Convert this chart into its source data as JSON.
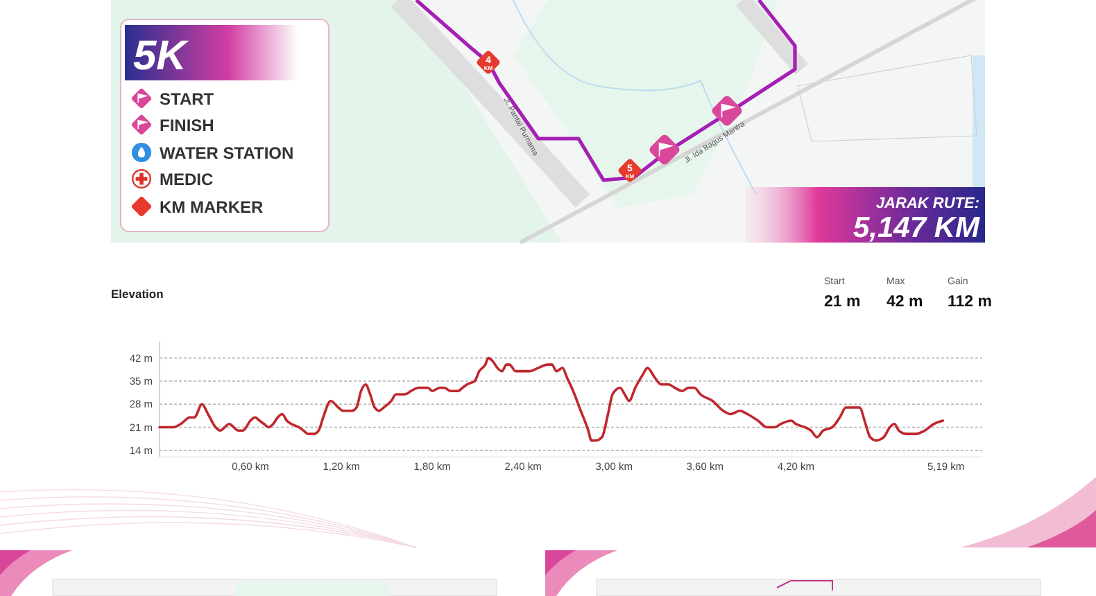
{
  "chart_data": [
    {
      "type": "other",
      "title": "5K",
      "annotations": [
        "START",
        "FINISH",
        "WATER STATION",
        "MEDIC",
        "KM MARKER",
        "JARAK RUTE:",
        "5,147 KM",
        "4 KM",
        "5 KM",
        "Jl. Pantai Purnama",
        "Jl. Ida Bagus Mantra"
      ]
    },
    {
      "type": "line",
      "title": "Elevation",
      "annotations": [
        "Start",
        "21 m",
        "Max",
        "42 m",
        "Gain",
        "112 m"
      ],
      "x": [
        0,
        0.03,
        0.09,
        0.14,
        0.2,
        0.23,
        0.28,
        0.32,
        0.37,
        0.4,
        0.43,
        0.46,
        0.49,
        0.52,
        0.55,
        0.6,
        0.63,
        0.66,
        0.69,
        0.72,
        0.75,
        0.78,
        0.81,
        0.84,
        0.87,
        0.92,
        0.95,
        0.98,
        1.02,
        1.05,
        1.08,
        1.13,
        1.18,
        1.21,
        1.25,
        1.27,
        1.3,
        1.33,
        1.36,
        1.39,
        1.42,
        1.45,
        1.48,
        1.53,
        1.56,
        1.62,
        1.66,
        1.71,
        1.77,
        1.8,
        1.85,
        1.88,
        1.92,
        1.97,
        2,
        2.03,
        2.08,
        2.11,
        2.15,
        2.17,
        2.2,
        2.23,
        2.26,
        2.29,
        2.31,
        2.35,
        2.4,
        2.44,
        2.5,
        2.56,
        2.59,
        2.62,
        2.66,
        2.69,
        2.73,
        2.78,
        2.83,
        2.85,
        2.88,
        2.92,
        2.96,
        2.99,
        3.04,
        3.07,
        3.1,
        3.14,
        3.19,
        3.22,
        3.27,
        3.31,
        3.36,
        3.4,
        3.45,
        3.49,
        3.53,
        3.57,
        3.65,
        3.72,
        3.77,
        3.83,
        3.88,
        3.95,
        4.01,
        4.06,
        4.1,
        4.17,
        4.2,
        4.26,
        4.3,
        4.34,
        4.38,
        4.44,
        4.49,
        4.53,
        4.58,
        4.62,
        4.66,
        4.69,
        4.73,
        4.78,
        4.82,
        4.85,
        4.88,
        4.93,
        4.99,
        5.05,
        5.11,
        5.17
      ],
      "values": [
        21,
        21,
        21,
        22,
        24,
        24,
        28,
        25,
        21,
        20,
        21,
        22,
        21,
        20,
        20,
        23,
        24,
        23,
        22,
        21,
        22,
        24,
        25,
        23,
        22,
        21,
        20,
        19,
        19,
        20,
        24,
        29,
        27,
        26,
        26,
        26,
        27,
        32,
        34,
        31,
        27,
        26,
        27,
        29,
        31,
        31,
        32,
        33,
        33,
        32,
        33,
        33,
        32,
        32,
        33,
        34,
        35,
        38,
        40,
        42,
        41,
        39,
        38,
        40,
        40,
        38,
        38,
        38,
        39,
        40,
        40,
        38,
        39,
        36,
        32,
        26,
        20,
        17,
        17,
        18,
        25,
        31,
        33,
        31,
        29,
        33,
        37,
        39,
        36,
        34,
        34,
        33,
        32,
        33,
        33,
        31,
        29,
        26,
        25,
        26,
        25,
        23,
        21,
        21,
        22,
        23,
        22,
        21,
        20,
        18,
        20,
        21,
        24,
        27,
        27,
        27,
        22,
        18,
        17,
        18,
        21,
        22,
        20,
        19,
        19,
        20,
        22,
        23
      ],
      "color": "#c0272d",
      "xlim": [
        0,
        5.43
      ],
      "ylim": [
        12,
        47
      ],
      "xticks": [
        {
          "value": 0.6,
          "label": "0,60 km"
        },
        {
          "value": 1.2,
          "label": "1,20 km"
        },
        {
          "value": 1.8,
          "label": "1,80 km"
        },
        {
          "value": 2.4,
          "label": "2,40 km"
        },
        {
          "value": 3,
          "label": "3,00 km"
        },
        {
          "value": 3.6,
          "label": "3,60 km"
        },
        {
          "value": 4.2,
          "label": "4,20 km"
        },
        {
          "value": 5.19,
          "label": "5,19 km"
        }
      ],
      "yticks": [
        {
          "value": 14,
          "label": "14 m"
        },
        {
          "value": 21,
          "label": "21 m"
        },
        {
          "value": 28,
          "label": "28 m"
        },
        {
          "value": 35,
          "label": "35 m"
        },
        {
          "value": 42,
          "label": "42 m"
        }
      ],
      "grid": "y",
      "line_style": "solid"
    }
  ]
}
